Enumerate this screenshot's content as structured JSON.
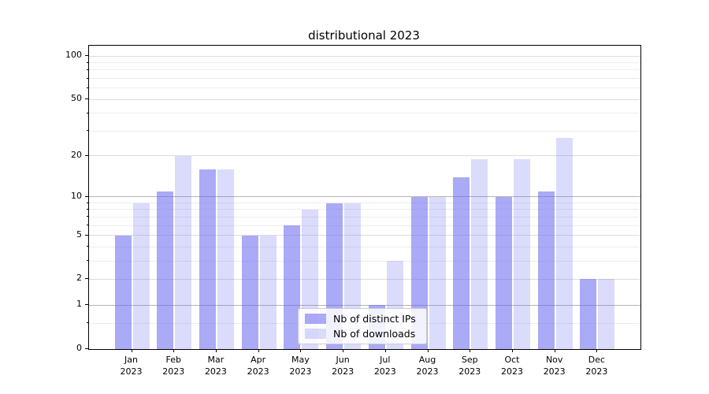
{
  "chart_data": {
    "type": "bar",
    "title": "distributional 2023",
    "categories": [
      "Jan",
      "Feb",
      "Mar",
      "Apr",
      "May",
      "Jun",
      "Jul",
      "Aug",
      "Sep",
      "Oct",
      "Nov",
      "Dec"
    ],
    "category_year": "2023",
    "series": [
      {
        "name": "Nb of distinct IPs",
        "color": "rgba(100,100,240,0.55)",
        "values": [
          5,
          11,
          16,
          5,
          6,
          9,
          1,
          10,
          14,
          10,
          11,
          2
        ]
      },
      {
        "name": "Nb of downloads",
        "color": "rgba(100,100,240,0.23)",
        "values": [
          9,
          20,
          16,
          5,
          8,
          9,
          3,
          10,
          19,
          19,
          27,
          2
        ]
      }
    ],
    "xlabel": "",
    "ylabel": "",
    "y_axis": {
      "scale": "log1p",
      "ticks": [
        0,
        1,
        2,
        5,
        10,
        20,
        50,
        100
      ],
      "emphasized_ticks": [
        1,
        10
      ],
      "minor_ticks": [
        0.5,
        3,
        4,
        6,
        7,
        8,
        9,
        30,
        40,
        60,
        70,
        80,
        90
      ],
      "range": [
        0,
        118
      ]
    },
    "grid": true,
    "legend_position": "lower center (inside axes)"
  },
  "colors": {
    "background": "#ffffff",
    "axis_spine": "#000000",
    "grid_major_dark": "#b5b5b5",
    "grid_major_light": "#dcdcdc",
    "grid_minor": "#ededf2",
    "text": "#000000",
    "legend_border": "#cccccc"
  }
}
